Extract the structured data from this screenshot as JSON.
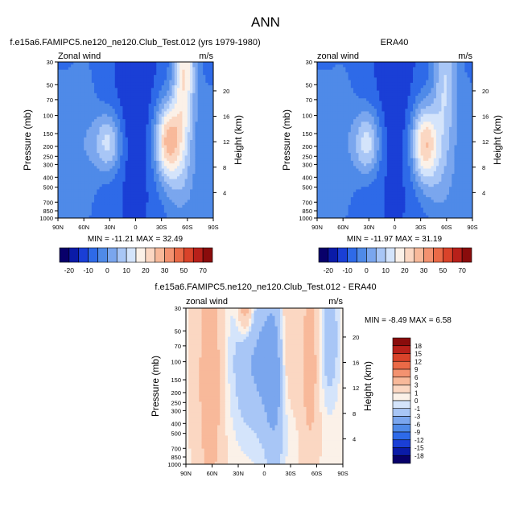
{
  "figure": {
    "title": "ANN"
  },
  "chart_data": [
    {
      "type": "heatmap",
      "id": "model",
      "title": "f.e15a6.FAMIPC5.ne120_ne120.Club_Test.012 (yrs 1979-1980)",
      "left_label": "Zonal wind",
      "right_label": "m/s",
      "ylabel": "Pressure (mb)",
      "ylabel_right": "Height (km)",
      "xticks": [
        "90N",
        "60N",
        "30N",
        "0",
        "30S",
        "60S",
        "90S"
      ],
      "yticks": [
        "30",
        "50",
        "70",
        "100",
        "150",
        "200",
        "250",
        "300",
        "400",
        "500",
        "700",
        "850",
        "1000"
      ],
      "ytick_values": [
        30,
        50,
        70,
        100,
        150,
        200,
        250,
        300,
        400,
        500,
        700,
        850,
        1000
      ],
      "height_ticks": [
        "20",
        "16",
        "12",
        "8",
        "4"
      ],
      "height_tick_values": [
        20,
        16,
        12,
        8,
        4
      ],
      "stats": "MIN = -11.21   MAX =  32.49",
      "levels": [
        -20,
        -15,
        -10,
        -5,
        0,
        5,
        10,
        15,
        20,
        25,
        30,
        40,
        50,
        60,
        70
      ],
      "colorbar_labels": [
        "-20",
        "-10",
        "0",
        "10",
        "20",
        "30",
        "50",
        "70"
      ]
    },
    {
      "type": "heatmap",
      "id": "obs",
      "title": "ERA40",
      "left_label": "zonal wind",
      "right_label": "m/s",
      "ylabel": "Pressure (mb)",
      "ylabel_right": "Height (km)",
      "xticks": [
        "90N",
        "60N",
        "30N",
        "0",
        "30S",
        "60S",
        "90S"
      ],
      "yticks": [
        "30",
        "50",
        "70",
        "100",
        "150",
        "200",
        "250",
        "300",
        "400",
        "500",
        "700",
        "850",
        "1000"
      ],
      "ytick_values": [
        30,
        50,
        70,
        100,
        150,
        200,
        250,
        300,
        400,
        500,
        700,
        850,
        1000
      ],
      "height_ticks": [
        "20",
        "16",
        "12",
        "8",
        "4"
      ],
      "height_tick_values": [
        20,
        16,
        12,
        8,
        4
      ],
      "stats": "MIN = -11.97   MAX =  31.19",
      "levels": [
        -20,
        -15,
        -10,
        -5,
        0,
        5,
        10,
        15,
        20,
        25,
        30,
        40,
        50,
        60,
        70
      ],
      "colorbar_labels": [
        "-20",
        "-10",
        "0",
        "10",
        "20",
        "30",
        "50",
        "70"
      ]
    },
    {
      "type": "heatmap",
      "id": "diff",
      "title": "f.e15a6.FAMIPC5.ne120_ne120.Club_Test.012 - ERA40",
      "left_label": "zonal wind",
      "right_label": "m/s",
      "ylabel": "Pressure (mb)",
      "ylabel_right": "Height (km)",
      "xticks": [
        "90N",
        "60N",
        "30N",
        "0",
        "30S",
        "60S",
        "90S"
      ],
      "yticks": [
        "30",
        "50",
        "70",
        "100",
        "150",
        "200",
        "250",
        "300",
        "400",
        "500",
        "700",
        "850",
        "1000"
      ],
      "ytick_values": [
        30,
        50,
        70,
        100,
        150,
        200,
        250,
        300,
        400,
        500,
        700,
        850,
        1000
      ],
      "height_ticks": [
        "20",
        "16",
        "12",
        "8",
        "4"
      ],
      "height_tick_values": [
        20,
        16,
        12,
        8,
        4
      ],
      "stats": "MIN =  -8.49   MAX =   6.58",
      "levels": [
        -18,
        -15,
        -12,
        -9,
        -6,
        -3,
        -1,
        0,
        1,
        3,
        6,
        9,
        12,
        15,
        18
      ],
      "colorbar_labels": [
        "18",
        "15",
        "12",
        "9",
        "6",
        "3",
        "1",
        "0",
        "-1",
        "-3",
        "-6",
        "-9",
        "-12",
        "-15",
        "-18"
      ]
    }
  ],
  "colors": {
    "palette": [
      "#08006a",
      "#0a1ba8",
      "#1a3fd6",
      "#2e6ae8",
      "#4f8ae8",
      "#7aa6ee",
      "#a8c6f6",
      "#d4e4fb",
      "#fbf1e8",
      "#fbd7c2",
      "#f8b99a",
      "#f39270",
      "#ea6a47",
      "#d9432a",
      "#b8201a",
      "#8a0c0c"
    ]
  }
}
